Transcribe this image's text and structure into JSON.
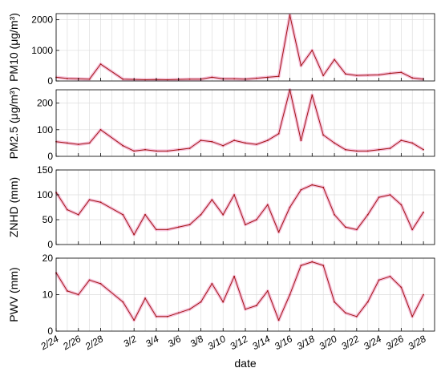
{
  "chart_data": [
    {
      "type": "line",
      "ylabel": "PM10 (μg/m³)",
      "ylim": [
        0,
        2200
      ],
      "yticks": [
        0,
        1000,
        2000
      ],
      "grid": true,
      "colors": {
        "line": "#a31515",
        "band": "#f5b8d6"
      },
      "x": [
        "2/24",
        "2/25",
        "2/26",
        "2/27",
        "2/28",
        "3/1",
        "3/2",
        "3/3",
        "3/4",
        "3/5",
        "3/6",
        "3/7",
        "3/8",
        "3/9",
        "3/10",
        "3/11",
        "3/12",
        "3/13",
        "3/14",
        "3/15",
        "3/16",
        "3/17",
        "3/18",
        "3/19",
        "3/20",
        "3/21",
        "3/22",
        "3/23",
        "3/24",
        "3/25",
        "3/26",
        "3/27",
        "3/28"
      ],
      "values": [
        120,
        80,
        70,
        60,
        550,
        60,
        50,
        40,
        45,
        40,
        50,
        60,
        60,
        120,
        70,
        70,
        60,
        90,
        120,
        150,
        2150,
        500,
        1000,
        180,
        700,
        230,
        180,
        190,
        200,
        250,
        280,
        100,
        60
      ]
    },
    {
      "type": "line",
      "ylabel": "PM2.5 (μg/m³)",
      "ylim": [
        0,
        250
      ],
      "yticks": [
        0,
        100,
        200
      ],
      "grid": true,
      "colors": {
        "line": "#a31515",
        "band": "#f5b8d6"
      },
      "x": [
        "2/24",
        "2/25",
        "2/26",
        "2/27",
        "2/28",
        "3/1",
        "3/2",
        "3/3",
        "3/4",
        "3/5",
        "3/6",
        "3/7",
        "3/8",
        "3/9",
        "3/10",
        "3/11",
        "3/12",
        "3/13",
        "3/14",
        "3/15",
        "3/16",
        "3/17",
        "3/18",
        "3/19",
        "3/20",
        "3/21",
        "3/22",
        "3/23",
        "3/24",
        "3/25",
        "3/26",
        "3/27",
        "3/28"
      ],
      "values": [
        55,
        50,
        45,
        50,
        100,
        40,
        20,
        25,
        20,
        20,
        25,
        30,
        60,
        55,
        40,
        60,
        50,
        45,
        60,
        85,
        250,
        60,
        230,
        80,
        50,
        25,
        20,
        20,
        25,
        30,
        60,
        50,
        25
      ]
    },
    {
      "type": "line",
      "ylabel": "ZNHD (mm)",
      "ylim": [
        0,
        150
      ],
      "yticks": [
        0,
        50,
        100,
        150
      ],
      "grid": true,
      "colors": {
        "line": "#a31515",
        "band": "#f5b8d6"
      },
      "x": [
        "2/24",
        "2/25",
        "2/26",
        "2/27",
        "2/28",
        "3/1",
        "3/2",
        "3/3",
        "3/4",
        "3/5",
        "3/6",
        "3/7",
        "3/8",
        "3/9",
        "3/10",
        "3/11",
        "3/12",
        "3/13",
        "3/14",
        "3/15",
        "3/16",
        "3/17",
        "3/18",
        "3/19",
        "3/20",
        "3/21",
        "3/22",
        "3/23",
        "3/24",
        "3/25",
        "3/26",
        "3/27",
        "3/28"
      ],
      "values": [
        105,
        70,
        60,
        90,
        85,
        60,
        20,
        60,
        30,
        30,
        35,
        40,
        60,
        90,
        60,
        100,
        40,
        50,
        80,
        25,
        75,
        110,
        120,
        115,
        60,
        35,
        30,
        60,
        95,
        100,
        80,
        30,
        65
      ]
    },
    {
      "type": "line",
      "ylabel": "PWV (mm)",
      "ylim": [
        0,
        20
      ],
      "yticks": [
        0,
        10,
        20
      ],
      "grid": true,
      "colors": {
        "line": "#a31515",
        "band": "#f5b8d6"
      },
      "x": [
        "2/24",
        "2/25",
        "2/26",
        "2/27",
        "2/28",
        "3/1",
        "3/2",
        "3/3",
        "3/4",
        "3/5",
        "3/6",
        "3/7",
        "3/8",
        "3/9",
        "3/10",
        "3/11",
        "3/12",
        "3/13",
        "3/14",
        "3/15",
        "3/16",
        "3/17",
        "3/18",
        "3/19",
        "3/20",
        "3/21",
        "3/22",
        "3/23",
        "3/24",
        "3/25",
        "3/26",
        "3/27",
        "3/28"
      ],
      "values": [
        16,
        11,
        10,
        14,
        13,
        8,
        3,
        9,
        4,
        4,
        5,
        6,
        8,
        13,
        8,
        15,
        6,
        7,
        11,
        3,
        10,
        18,
        19,
        18,
        8,
        5,
        4,
        8,
        14,
        15,
        12,
        4,
        10
      ]
    }
  ],
  "xaxis": {
    "label": "date",
    "ticks": [
      "2/24",
      "2/26",
      "2/28",
      "3/2",
      "3/4",
      "3/6",
      "3/8",
      "3/10",
      "3/12",
      "3/14",
      "3/16",
      "3/18",
      "3/20",
      "3/22",
      "3/24",
      "3/26",
      "3/28"
    ]
  }
}
